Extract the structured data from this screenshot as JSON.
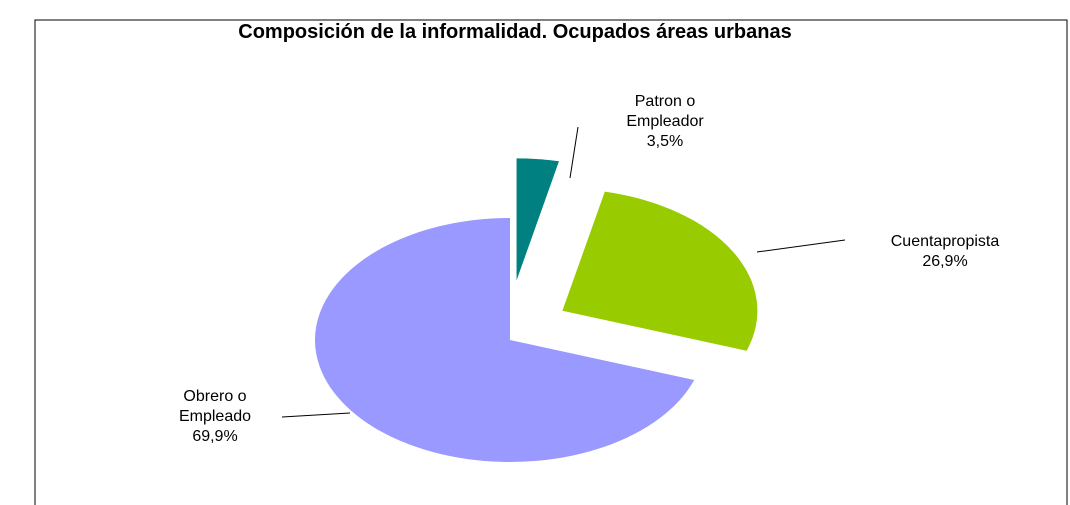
{
  "chart_data": {
    "type": "pie",
    "title": "Composición de la informalidad. Ocupados  áreas urbanas",
    "categories": [
      "Patron o Empleador",
      "Cuentapropista",
      "Obrero o Empleado"
    ],
    "values": [
      3.5,
      26.9,
      69.9
    ],
    "value_labels": [
      "3,5%",
      "26,9%",
      "69,9%"
    ],
    "colors": [
      "#008080",
      "#99cc00",
      "#9999ff"
    ]
  }
}
